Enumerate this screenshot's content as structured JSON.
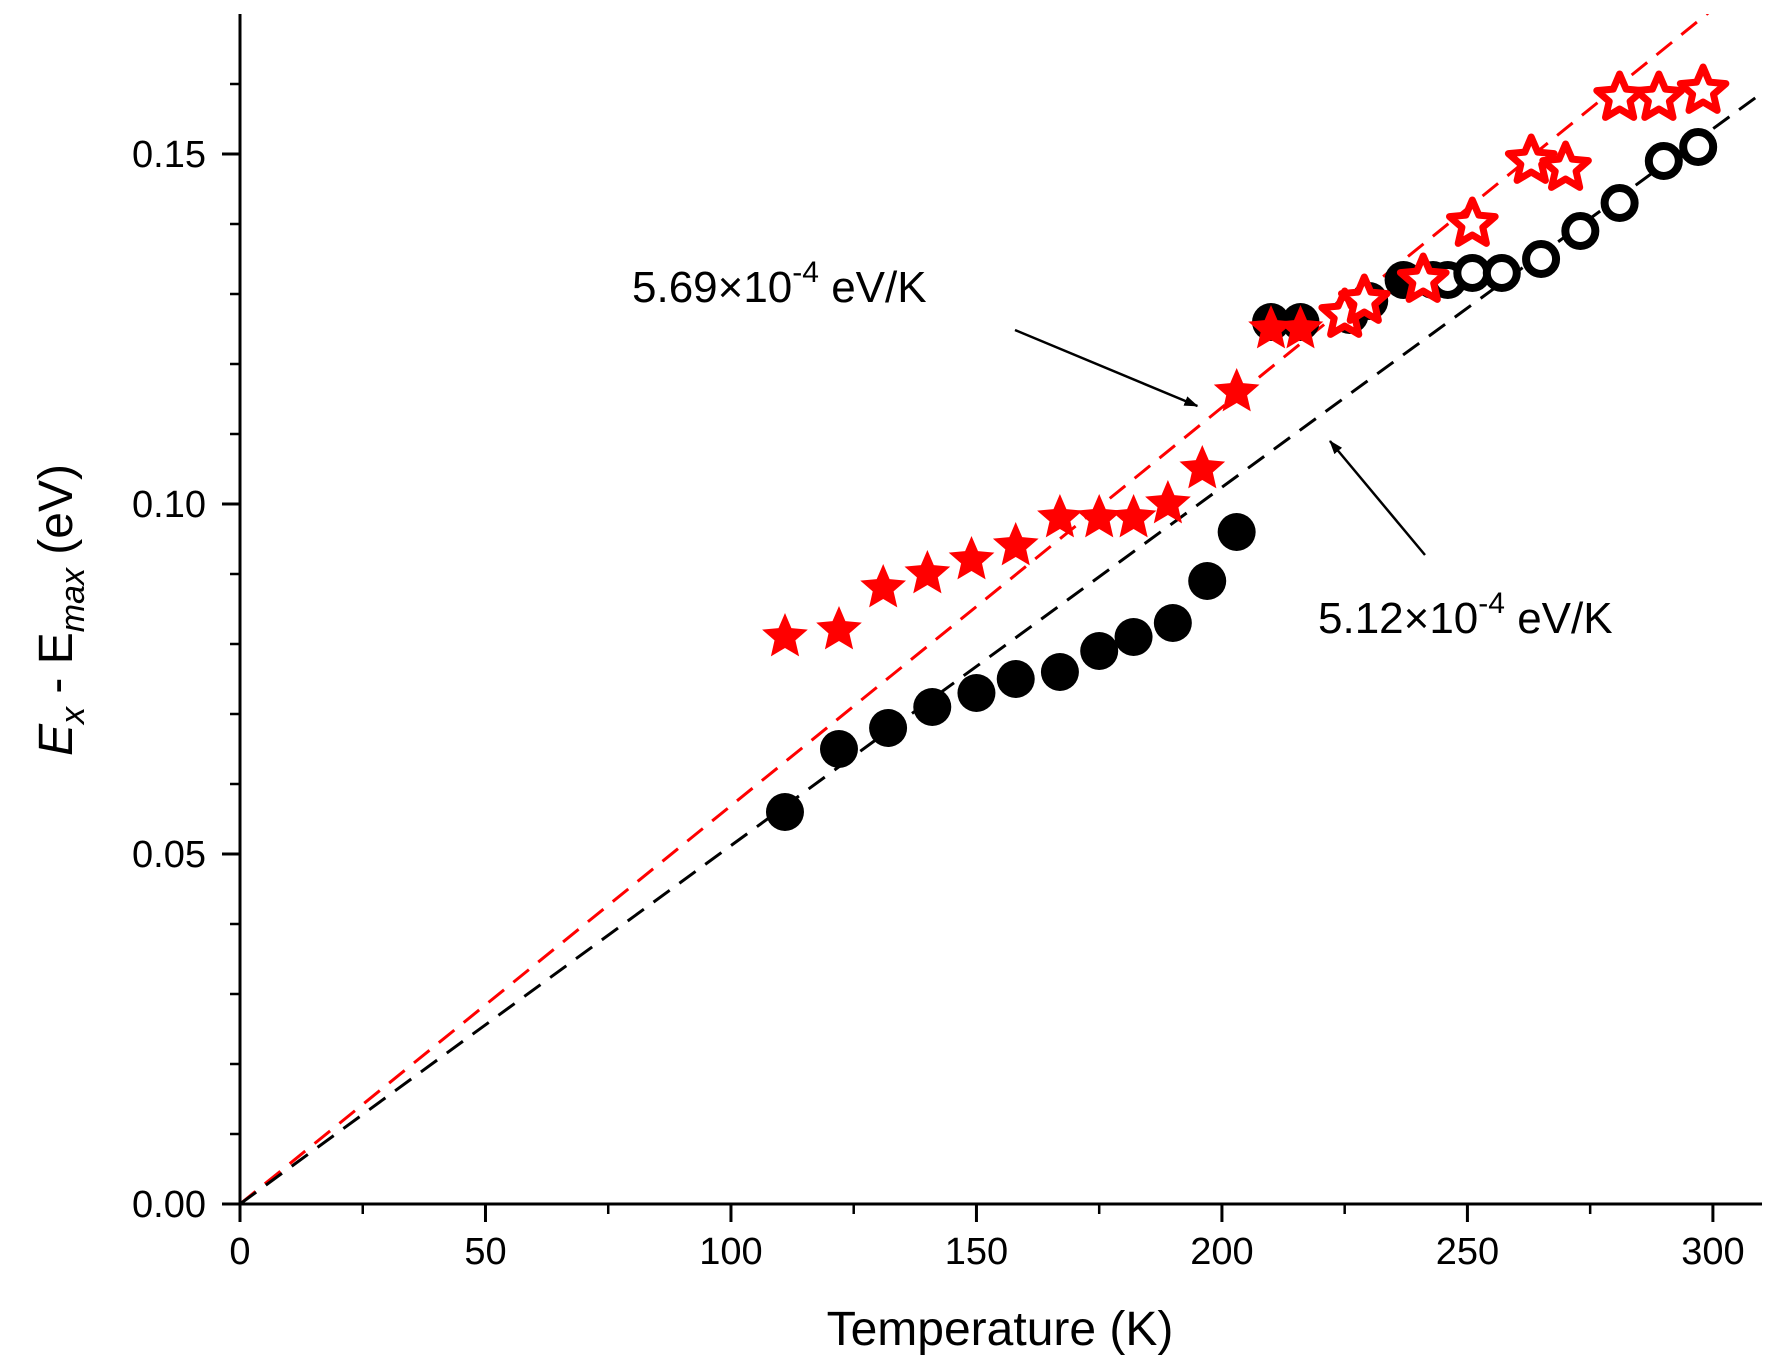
{
  "chart_data": {
    "type": "scatter",
    "title": "",
    "xlabel": "Temperature (K)",
    "ylabel": {
      "main": "E",
      "sub_x": "x",
      "minus": " - E",
      "sub_max": "max",
      "unit": " (eV)"
    },
    "xlim": [
      0,
      310
    ],
    "ylim": [
      0,
      0.17
    ],
    "xticks": [
      0,
      50,
      100,
      150,
      200,
      250,
      300
    ],
    "xtick_labels": [
      "0",
      "50",
      "100",
      "150",
      "200",
      "250",
      "300"
    ],
    "yticks": [
      0.0,
      0.05,
      0.1,
      0.15
    ],
    "ytick_labels": [
      "0.00",
      "0.05",
      "0.10",
      "0.15"
    ],
    "legend": "none",
    "series": [
      {
        "name": "black-filled-circles",
        "marker": "circle-filled",
        "color": "#000000",
        "x": [
          111,
          122,
          132,
          141,
          150,
          158,
          167,
          175,
          182,
          190,
          197,
          203,
          210,
          216,
          226,
          230,
          237,
          243
        ],
        "y": [
          0.056,
          0.065,
          0.068,
          0.071,
          0.073,
          0.075,
          0.076,
          0.079,
          0.081,
          0.083,
          0.089,
          0.096,
          0.126,
          0.126,
          0.127,
          0.129,
          0.132,
          0.132
        ]
      },
      {
        "name": "black-open-circles",
        "marker": "circle-open",
        "color": "#000000",
        "x": [
          246,
          251,
          257,
          265,
          273,
          281,
          290,
          297
        ],
        "y": [
          0.132,
          0.133,
          0.133,
          0.135,
          0.139,
          0.143,
          0.149,
          0.151
        ]
      },
      {
        "name": "red-filled-stars",
        "marker": "star-filled",
        "color": "#ff0000",
        "x": [
          111,
          122,
          131,
          140,
          149,
          158,
          167,
          175,
          182,
          189,
          196,
          203,
          210,
          216
        ],
        "y": [
          0.081,
          0.082,
          0.088,
          0.09,
          0.092,
          0.094,
          0.098,
          0.098,
          0.098,
          0.1,
          0.105,
          0.116,
          0.125,
          0.125
        ]
      },
      {
        "name": "red-open-stars",
        "marker": "star-open",
        "color": "#ff0000",
        "x": [
          225,
          229,
          241,
          251,
          263,
          270,
          281,
          289,
          298
        ],
        "y": [
          0.127,
          0.129,
          0.132,
          0.14,
          0.149,
          0.148,
          0.158,
          0.158,
          0.159
        ]
      }
    ],
    "fit_lines": [
      {
        "name": "red-fit",
        "color": "#ff0000",
        "slope": 0.000569,
        "intercept": 0,
        "x_range": [
          0,
          310
        ]
      },
      {
        "name": "black-fit",
        "color": "#000000",
        "slope": 0.000512,
        "intercept": 0,
        "x_range": [
          0,
          310
        ]
      }
    ],
    "annotations": [
      {
        "name": "red-slope",
        "mantissa": "5.69×10",
        "exponent": "-4",
        "unit": " eV/K",
        "arrow_to": [
          195,
          0.114
        ]
      },
      {
        "name": "black-slope",
        "mantissa": "5.12×10",
        "exponent": "-4",
        "unit": " eV/K",
        "arrow_to": [
          222,
          0.109
        ]
      }
    ]
  }
}
